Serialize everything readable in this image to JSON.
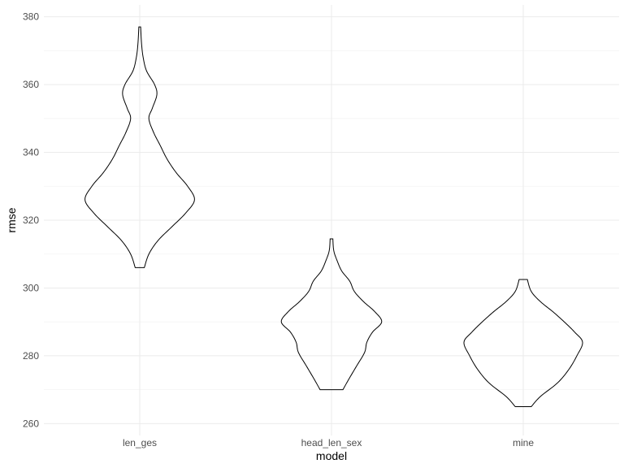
{
  "chart_data": {
    "type": "violin",
    "xlabel": "model",
    "ylabel": "rmse",
    "ylim": [
      260,
      380
    ],
    "yticks": [
      260,
      280,
      300,
      320,
      340,
      360,
      380
    ],
    "grid": true,
    "categories": [
      "len_ges",
      "head_len_sex",
      "mine"
    ],
    "series": [
      {
        "category": "len_ges",
        "min": 306,
        "max": 377,
        "profile": [
          [
            306,
            0.2
          ],
          [
            310,
            0.4
          ],
          [
            314,
            0.8
          ],
          [
            318,
            1.4
          ],
          [
            322,
            2.0
          ],
          [
            326,
            2.4
          ],
          [
            330,
            2.1
          ],
          [
            334,
            1.6
          ],
          [
            338,
            1.2
          ],
          [
            342,
            0.9
          ],
          [
            346,
            0.6
          ],
          [
            350,
            0.4
          ],
          [
            353,
            0.55
          ],
          [
            357,
            0.75
          ],
          [
            360,
            0.65
          ],
          [
            364,
            0.3
          ],
          [
            368,
            0.15
          ],
          [
            372,
            0.08
          ],
          [
            377,
            0.04
          ]
        ]
      },
      {
        "category": "head_len_sex",
        "min": 270,
        "max": 314.5,
        "profile": [
          [
            270,
            0.5
          ],
          [
            273,
            0.75
          ],
          [
            277,
            1.1
          ],
          [
            281,
            1.45
          ],
          [
            284,
            1.55
          ],
          [
            287,
            1.8
          ],
          [
            290,
            2.2
          ],
          [
            293,
            1.9
          ],
          [
            296,
            1.4
          ],
          [
            299,
            1.0
          ],
          [
            302,
            0.8
          ],
          [
            305,
            0.45
          ],
          [
            308,
            0.25
          ],
          [
            311,
            0.1
          ],
          [
            314.5,
            0.06
          ]
        ]
      },
      {
        "category": "mine",
        "min": 265,
        "max": 302.5,
        "profile": [
          [
            265,
            0.35
          ],
          [
            268,
            0.75
          ],
          [
            272,
            1.5
          ],
          [
            276,
            2.0
          ],
          [
            280,
            2.35
          ],
          [
            284,
            2.6
          ],
          [
            287,
            2.25
          ],
          [
            290,
            1.8
          ],
          [
            293,
            1.3
          ],
          [
            296,
            0.75
          ],
          [
            299,
            0.35
          ],
          [
            302.5,
            0.18
          ]
        ]
      }
    ]
  }
}
